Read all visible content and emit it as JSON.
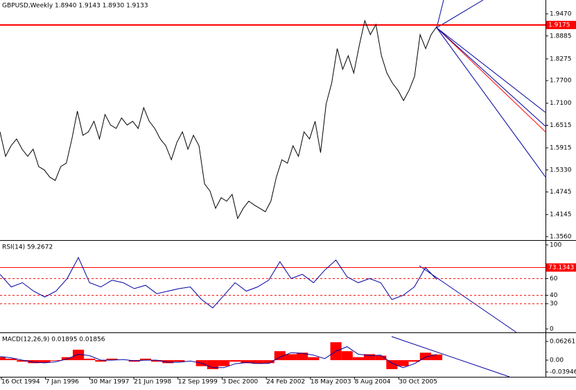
{
  "chart_data": [
    {
      "type": "line",
      "title": "GBPUSD,Weekly  1.8940 1.9143 1.8930 1.9133",
      "color": "#000000",
      "values": [
        1.634,
        1.569,
        1.597,
        1.615,
        1.588,
        1.569,
        1.588,
        1.542,
        1.533,
        1.514,
        1.505,
        1.542,
        1.551,
        1.615,
        1.689,
        1.625,
        1.634,
        1.662,
        1.615,
        1.68,
        1.652,
        1.643,
        1.671,
        1.652,
        1.662,
        1.643,
        1.698,
        1.662,
        1.643,
        1.615,
        1.597,
        1.56,
        1.606,
        1.634,
        1.588,
        1.625,
        1.597,
        1.496,
        1.477,
        1.431,
        1.459,
        1.45,
        1.468,
        1.404,
        1.431,
        1.45,
        1.44,
        1.431,
        1.422,
        1.45,
        1.514,
        1.56,
        1.551,
        1.597,
        1.569,
        1.634,
        1.615,
        1.662,
        1.579,
        1.708,
        1.763,
        1.855,
        1.8,
        1.836,
        1.79,
        1.864,
        1.929,
        1.892,
        1.919,
        1.836,
        1.79,
        1.763,
        1.744,
        1.717,
        1.744,
        1.781,
        1.892,
        1.855,
        1.892,
        1.913
      ],
      "ylim": [
        1.3486,
        1.9838
      ],
      "yticks": [
        {
          "value": 1.947,
          "label": "1.9470"
        },
        {
          "value": 1.8885,
          "label": "1.8885"
        },
        {
          "value": 1.8275,
          "label": "1.8275"
        },
        {
          "value": 1.77,
          "label": "1.7700"
        },
        {
          "value": 1.71,
          "label": "1.7100"
        },
        {
          "value": 1.6515,
          "label": "1.6515"
        },
        {
          "value": 1.5915,
          "label": "1.5915"
        },
        {
          "value": 1.533,
          "label": "1.5330"
        },
        {
          "value": 1.4745,
          "label": "1.4745"
        },
        {
          "value": 1.4145,
          "label": "1.4145"
        },
        {
          "value": 1.356,
          "label": "1.3560"
        }
      ],
      "level": {
        "value": 1.9175,
        "label": "1.9175"
      },
      "level_color": "#ff0000"
    },
    {
      "type": "line",
      "title": "RSI(14) 59.2672",
      "color": "#0000a0",
      "values": [
        65,
        50,
        55,
        45,
        38,
        45,
        60,
        85,
        55,
        50,
        58,
        55,
        48,
        52,
        42,
        45,
        48,
        50,
        35,
        25,
        40,
        55,
        45,
        50,
        58,
        80,
        60,
        65,
        55,
        70,
        82,
        62,
        55,
        60,
        55,
        35,
        40,
        50,
        73,
        59
      ],
      "ylim": [
        -3.3,
        104.1
      ],
      "yticks": [
        0,
        30,
        40,
        60,
        100
      ],
      "levels": [
        30,
        40,
        60
      ],
      "level": {
        "value": 73.1343,
        "label": "73.1343"
      },
      "level_color": "#ff0000"
    },
    {
      "type": "macd",
      "title": "MACD(12,26,9) 0.01895 0.01856",
      "color": "#ff0000",
      "signal_color": "#0000a0",
      "values": [
        0.01,
        0.005,
        -0.005,
        -0.01,
        -0.008,
        -0.002,
        0.01,
        0.035,
        0.005,
        -0.005,
        0.005,
        0.0,
        -0.005,
        0.005,
        -0.005,
        -0.01,
        -0.005,
        0.0,
        -0.02,
        -0.03,
        -0.02,
        -0.005,
        -0.01,
        -0.012,
        -0.01,
        0.03,
        0.02,
        0.025,
        0.01,
        0.0,
        0.06,
        0.03,
        0.01,
        0.02,
        0.015,
        -0.03,
        -0.02,
        -0.005,
        0.025,
        0.019
      ],
      "signal": [
        0.012,
        0.008,
        0.0,
        -0.007,
        -0.009,
        -0.005,
        0.004,
        0.02,
        0.015,
        0.0,
        0.0,
        0.002,
        -0.002,
        0.0,
        0.0,
        -0.007,
        -0.007,
        -0.003,
        -0.01,
        -0.025,
        -0.025,
        -0.012,
        -0.008,
        -0.011,
        -0.011,
        0.01,
        0.025,
        0.023,
        0.017,
        0.005,
        0.03,
        0.045,
        0.02,
        0.015,
        0.017,
        -0.01,
        -0.025,
        -0.012,
        0.01,
        0.019
      ],
      "ylim": [
        -0.0557,
        0.0882
      ],
      "yticks": [
        0.06261,
        {
          "value": 0,
          "label": "0.00"
        },
        -0.03946
      ]
    }
  ],
  "x_labels": [
    "16 Oct 1994",
    "7 Jan 1996",
    "30 Mar 1997",
    "21 Jun 1998",
    "12 Sep 1999",
    "3 Dec 2000",
    "24 Feb 2002",
    "18 May 2003",
    "8 Aug 2004",
    "30 Oct 2005"
  ]
}
